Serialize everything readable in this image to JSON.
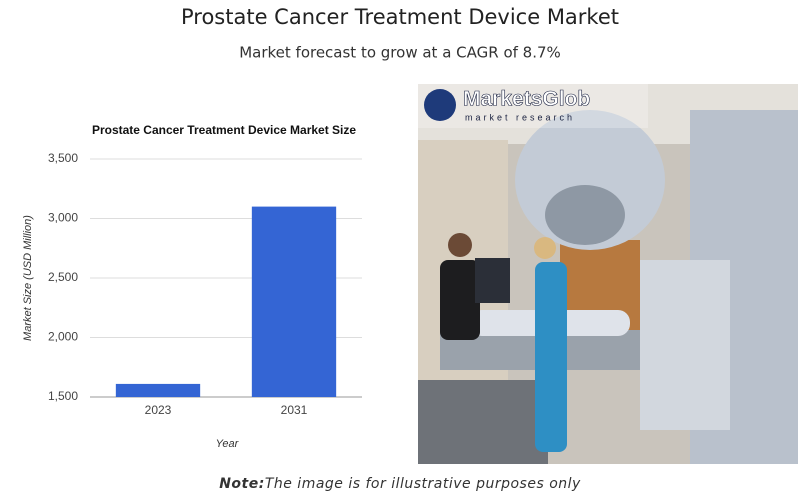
{
  "header": {
    "title": "Prostate Cancer Treatment Device Market",
    "subtitle": "Market forecast to grow at a CAGR of 8.7%"
  },
  "chart_data": {
    "type": "bar",
    "title": "Prostate Cancer Treatment Device Market Size",
    "y_label": "Market Size (USD Million)",
    "x_label": "Year",
    "categories": [
      "2023",
      "2031"
    ],
    "values": [
      1610,
      3100
    ],
    "color": "#3465d4",
    "ylim": [
      1500,
      3500
    ],
    "yticks": [
      {
        "value": 1500,
        "label": "1,500"
      },
      {
        "value": 2000,
        "label": "2,000"
      },
      {
        "value": 2500,
        "label": "2,500"
      },
      {
        "value": 3000,
        "label": "3,000"
      },
      {
        "value": 3500,
        "label": "3,500"
      }
    ],
    "grid": true
  },
  "image": {
    "logo": "MarketsGlob",
    "tagline": "market research"
  },
  "note": {
    "label": "Note:",
    "text": "The image is for illustrative purposes only"
  }
}
